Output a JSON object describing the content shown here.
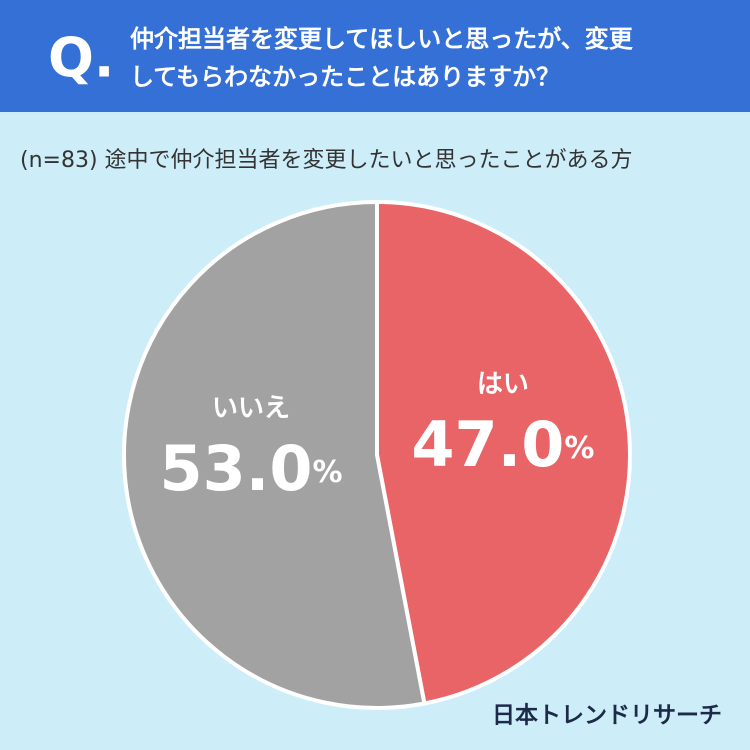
{
  "chart_data": {
    "type": "pie",
    "q_mark": "Q.",
    "title_lines": [
      "仲介担当者を変更してほしいと思ったが、変更",
      "してもらわなかったことはありますか？"
    ],
    "subtitle": "(n=83) 途中で仲介担当者を変更したいと思ったことがある方",
    "categories": [
      "はい",
      "いいえ"
    ],
    "values": [
      47.0,
      53.0
    ],
    "value_labels": [
      "47.0%",
      "53.0%"
    ],
    "colors": [
      "#e86466",
      "#a2a2a2"
    ],
    "source": "日本トレンドリサーチ"
  }
}
